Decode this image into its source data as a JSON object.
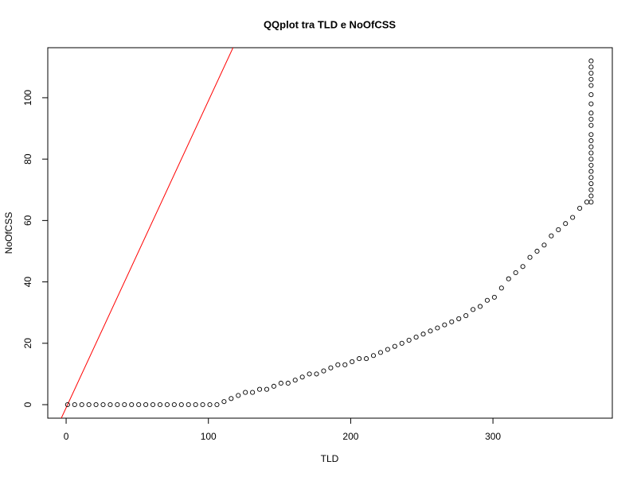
{
  "chart_data": {
    "type": "scatter",
    "title": "QQplot tra TLD e NoOfCSS",
    "x_label": "TLD",
    "y_label": "NoOfCSS",
    "x": [
      1,
      6,
      11,
      16,
      21,
      26,
      31,
      36,
      41,
      46,
      51,
      56,
      61,
      66,
      71,
      76,
      81,
      86,
      91,
      96,
      101,
      106,
      111,
      116,
      121,
      126,
      131,
      136,
      141,
      146,
      151,
      156,
      161,
      166,
      171,
      176,
      181,
      186,
      191,
      196,
      201,
      206,
      211,
      216,
      221,
      226,
      231,
      236,
      241,
      246,
      251,
      256,
      261,
      266,
      271,
      276,
      281,
      286,
      291,
      296,
      301,
      306,
      311,
      316,
      321,
      326,
      331,
      336,
      341,
      346,
      351,
      356,
      361,
      366,
      369,
      369,
      369,
      369,
      369,
      369,
      369,
      369,
      369,
      369,
      369,
      369,
      369,
      369,
      369,
      369,
      369,
      369,
      369,
      369,
      369,
      369
    ],
    "values": [
      0,
      0,
      0,
      0,
      0,
      0,
      0,
      0,
      0,
      0,
      0,
      0,
      0,
      0,
      0,
      0,
      0,
      0,
      0,
      0,
      0,
      0,
      1,
      2,
      3,
      4,
      4,
      5,
      5,
      6,
      7,
      7,
      8,
      9,
      10,
      10,
      11,
      12,
      13,
      13,
      14,
      15,
      15,
      16,
      17,
      18,
      19,
      20,
      21,
      22,
      23,
      24,
      25,
      26,
      27,
      28,
      29,
      31,
      32,
      34,
      35,
      38,
      41,
      43,
      45,
      48,
      50,
      52,
      55,
      57,
      59,
      61,
      64,
      66,
      66,
      68,
      70,
      72,
      74,
      76,
      78,
      80,
      82,
      84,
      86,
      88,
      91,
      93,
      95,
      98,
      101,
      104,
      106,
      108,
      110,
      112
    ],
    "color": "#000000",
    "reference_line": {
      "slope": 1,
      "intercept": -1,
      "color": "#ff0000"
    },
    "xlim": [
      -12.9,
      383.9
    ],
    "ylim": [
      -4.4,
      116.3
    ],
    "xticks": [
      0,
      100,
      200,
      300
    ],
    "yticks": [
      0,
      20,
      40,
      60,
      80,
      100
    ]
  }
}
